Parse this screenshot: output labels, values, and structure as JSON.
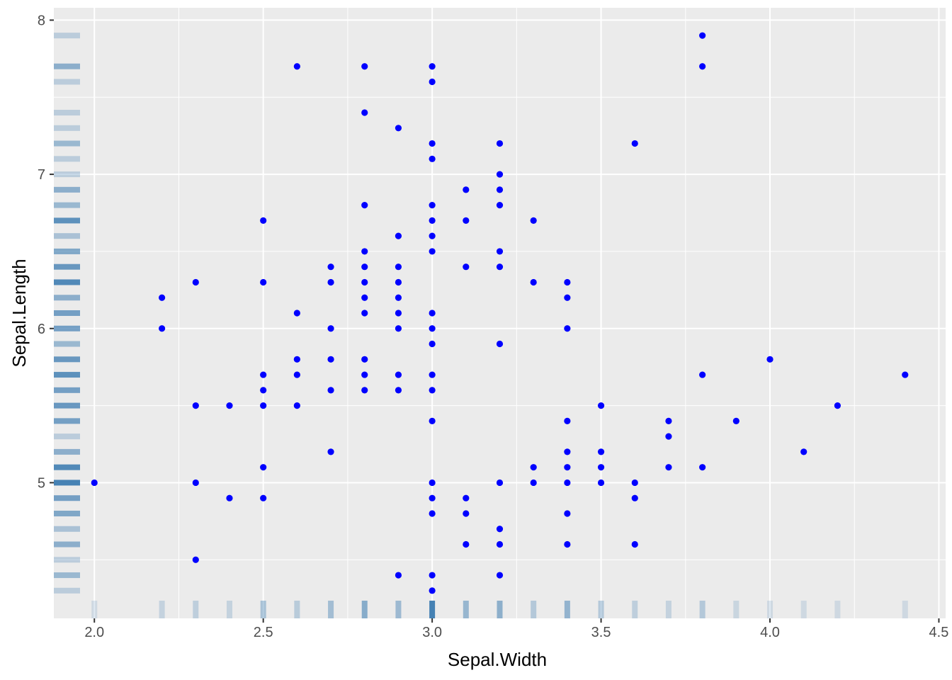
{
  "chart_data": {
    "type": "scatter",
    "title": "",
    "xlabel": "Sepal.Width",
    "ylabel": "Sepal.Length",
    "xlim": [
      1.88,
      4.52
    ],
    "ylim": [
      4.12,
      8.08
    ],
    "x_ticks": [
      2.0,
      2.5,
      3.0,
      3.5,
      4.0,
      4.5
    ],
    "x_tick_labels": [
      "2.0",
      "2.5",
      "3.0",
      "3.5",
      "4.0",
      "4.5"
    ],
    "y_ticks": [
      5,
      6,
      7,
      8
    ],
    "y_tick_labels": [
      "5",
      "6",
      "7",
      "8"
    ],
    "grid": true,
    "panel_background": "#ebebeb",
    "grid_color": "#ffffff",
    "point_color": "#0000ff",
    "rug_color": "#4682b4",
    "rug": {
      "x_marginal": "bottom",
      "y_marginal": "left",
      "x_counts": [
        {
          "value": 2.0,
          "count": 1
        },
        {
          "value": 2.2,
          "count": 3
        },
        {
          "value": 2.3,
          "count": 4
        },
        {
          "value": 2.4,
          "count": 3
        },
        {
          "value": 2.5,
          "count": 8
        },
        {
          "value": 2.6,
          "count": 5
        },
        {
          "value": 2.7,
          "count": 9
        },
        {
          "value": 2.8,
          "count": 14
        },
        {
          "value": 2.9,
          "count": 10
        },
        {
          "value": 3.0,
          "count": 26
        },
        {
          "value": 3.1,
          "count": 11
        },
        {
          "value": 3.2,
          "count": 13
        },
        {
          "value": 3.3,
          "count": 6
        },
        {
          "value": 3.4,
          "count": 12
        },
        {
          "value": 3.5,
          "count": 6
        },
        {
          "value": 3.6,
          "count": 4
        },
        {
          "value": 3.7,
          "count": 3
        },
        {
          "value": 3.8,
          "count": 6
        },
        {
          "value": 3.9,
          "count": 2
        },
        {
          "value": 4.0,
          "count": 1
        },
        {
          "value": 4.1,
          "count": 1
        },
        {
          "value": 4.2,
          "count": 1
        },
        {
          "value": 4.4,
          "count": 1
        }
      ],
      "y_counts": [
        {
          "value": 4.3,
          "count": 1
        },
        {
          "value": 4.4,
          "count": 3
        },
        {
          "value": 4.5,
          "count": 1
        },
        {
          "value": 4.6,
          "count": 4
        },
        {
          "value": 4.7,
          "count": 2
        },
        {
          "value": 4.8,
          "count": 5
        },
        {
          "value": 4.9,
          "count": 6
        },
        {
          "value": 5.0,
          "count": 10
        },
        {
          "value": 5.1,
          "count": 9
        },
        {
          "value": 5.2,
          "count": 4
        },
        {
          "value": 5.3,
          "count": 1
        },
        {
          "value": 5.4,
          "count": 6
        },
        {
          "value": 5.5,
          "count": 7
        },
        {
          "value": 5.6,
          "count": 6
        },
        {
          "value": 5.7,
          "count": 8
        },
        {
          "value": 5.8,
          "count": 7
        },
        {
          "value": 5.9,
          "count": 3
        },
        {
          "value": 6.0,
          "count": 6
        },
        {
          "value": 6.1,
          "count": 6
        },
        {
          "value": 6.2,
          "count": 4
        },
        {
          "value": 6.3,
          "count": 9
        },
        {
          "value": 6.4,
          "count": 7
        },
        {
          "value": 6.5,
          "count": 5
        },
        {
          "value": 6.6,
          "count": 2
        },
        {
          "value": 6.7,
          "count": 8
        },
        {
          "value": 6.8,
          "count": 3
        },
        {
          "value": 6.9,
          "count": 4
        },
        {
          "value": 7.0,
          "count": 1
        },
        {
          "value": 7.1,
          "count": 1
        },
        {
          "value": 7.2,
          "count": 3
        },
        {
          "value": 7.3,
          "count": 1
        },
        {
          "value": 7.4,
          "count": 1
        },
        {
          "value": 7.6,
          "count": 1
        },
        {
          "value": 7.7,
          "count": 4
        },
        {
          "value": 7.9,
          "count": 1
        }
      ]
    },
    "points": [
      {
        "x": 2.0,
        "y": 5.0
      },
      {
        "x": 2.2,
        "y": 6.0
      },
      {
        "x": 2.2,
        "y": 6.2
      },
      {
        "x": 2.3,
        "y": 4.5
      },
      {
        "x": 2.3,
        "y": 5.0
      },
      {
        "x": 2.3,
        "y": 5.5
      },
      {
        "x": 2.3,
        "y": 6.3
      },
      {
        "x": 2.4,
        "y": 4.9
      },
      {
        "x": 2.4,
        "y": 5.5
      },
      {
        "x": 2.5,
        "y": 4.9
      },
      {
        "x": 2.5,
        "y": 5.1
      },
      {
        "x": 2.5,
        "y": 5.5
      },
      {
        "x": 2.5,
        "y": 5.6
      },
      {
        "x": 2.5,
        "y": 5.7
      },
      {
        "x": 2.5,
        "y": 6.3
      },
      {
        "x": 2.5,
        "y": 6.7
      },
      {
        "x": 2.6,
        "y": 5.5
      },
      {
        "x": 2.6,
        "y": 5.7
      },
      {
        "x": 2.6,
        "y": 5.8
      },
      {
        "x": 2.6,
        "y": 6.1
      },
      {
        "x": 2.6,
        "y": 7.7
      },
      {
        "x": 2.7,
        "y": 5.2
      },
      {
        "x": 2.7,
        "y": 5.6
      },
      {
        "x": 2.7,
        "y": 5.8
      },
      {
        "x": 2.7,
        "y": 6.0
      },
      {
        "x": 2.7,
        "y": 6.3
      },
      {
        "x": 2.7,
        "y": 6.4
      },
      {
        "x": 2.8,
        "y": 5.6
      },
      {
        "x": 2.8,
        "y": 5.7
      },
      {
        "x": 2.8,
        "y": 5.8
      },
      {
        "x": 2.8,
        "y": 6.1
      },
      {
        "x": 2.8,
        "y": 6.2
      },
      {
        "x": 2.8,
        "y": 6.3
      },
      {
        "x": 2.8,
        "y": 6.4
      },
      {
        "x": 2.8,
        "y": 6.5
      },
      {
        "x": 2.8,
        "y": 6.8
      },
      {
        "x": 2.8,
        "y": 7.4
      },
      {
        "x": 2.8,
        "y": 7.7
      },
      {
        "x": 2.9,
        "y": 4.4
      },
      {
        "x": 2.9,
        "y": 5.6
      },
      {
        "x": 2.9,
        "y": 5.7
      },
      {
        "x": 2.9,
        "y": 6.0
      },
      {
        "x": 2.9,
        "y": 6.1
      },
      {
        "x": 2.9,
        "y": 6.2
      },
      {
        "x": 2.9,
        "y": 6.3
      },
      {
        "x": 2.9,
        "y": 6.4
      },
      {
        "x": 2.9,
        "y": 6.6
      },
      {
        "x": 2.9,
        "y": 7.3
      },
      {
        "x": 3.0,
        "y": 4.3
      },
      {
        "x": 3.0,
        "y": 4.4
      },
      {
        "x": 3.0,
        "y": 4.8
      },
      {
        "x": 3.0,
        "y": 4.9
      },
      {
        "x": 3.0,
        "y": 5.0
      },
      {
        "x": 3.0,
        "y": 5.4
      },
      {
        "x": 3.0,
        "y": 5.6
      },
      {
        "x": 3.0,
        "y": 5.7
      },
      {
        "x": 3.0,
        "y": 5.9
      },
      {
        "x": 3.0,
        "y": 6.0
      },
      {
        "x": 3.0,
        "y": 6.1
      },
      {
        "x": 3.0,
        "y": 6.5
      },
      {
        "x": 3.0,
        "y": 6.6
      },
      {
        "x": 3.0,
        "y": 6.7
      },
      {
        "x": 3.0,
        "y": 6.8
      },
      {
        "x": 3.0,
        "y": 7.1
      },
      {
        "x": 3.0,
        "y": 7.2
      },
      {
        "x": 3.0,
        "y": 7.6
      },
      {
        "x": 3.0,
        "y": 7.7
      },
      {
        "x": 3.1,
        "y": 4.6
      },
      {
        "x": 3.1,
        "y": 4.8
      },
      {
        "x": 3.1,
        "y": 4.9
      },
      {
        "x": 3.1,
        "y": 6.4
      },
      {
        "x": 3.1,
        "y": 6.7
      },
      {
        "x": 3.1,
        "y": 6.9
      },
      {
        "x": 3.2,
        "y": 4.4
      },
      {
        "x": 3.2,
        "y": 4.6
      },
      {
        "x": 3.2,
        "y": 4.7
      },
      {
        "x": 3.2,
        "y": 5.0
      },
      {
        "x": 3.2,
        "y": 5.9
      },
      {
        "x": 3.2,
        "y": 6.4
      },
      {
        "x": 3.2,
        "y": 6.5
      },
      {
        "x": 3.2,
        "y": 6.8
      },
      {
        "x": 3.2,
        "y": 6.9
      },
      {
        "x": 3.2,
        "y": 7.0
      },
      {
        "x": 3.2,
        "y": 7.2
      },
      {
        "x": 3.3,
        "y": 5.0
      },
      {
        "x": 3.3,
        "y": 5.1
      },
      {
        "x": 3.3,
        "y": 6.3
      },
      {
        "x": 3.3,
        "y": 6.7
      },
      {
        "x": 3.4,
        "y": 4.6
      },
      {
        "x": 3.4,
        "y": 4.8
      },
      {
        "x": 3.4,
        "y": 5.0
      },
      {
        "x": 3.4,
        "y": 5.1
      },
      {
        "x": 3.4,
        "y": 5.2
      },
      {
        "x": 3.4,
        "y": 5.4
      },
      {
        "x": 3.4,
        "y": 6.0
      },
      {
        "x": 3.4,
        "y": 6.2
      },
      {
        "x": 3.4,
        "y": 6.3
      },
      {
        "x": 3.5,
        "y": 5.0
      },
      {
        "x": 3.5,
        "y": 5.1
      },
      {
        "x": 3.5,
        "y": 5.2
      },
      {
        "x": 3.5,
        "y": 5.5
      },
      {
        "x": 3.6,
        "y": 4.6
      },
      {
        "x": 3.6,
        "y": 4.9
      },
      {
        "x": 3.6,
        "y": 5.0
      },
      {
        "x": 3.6,
        "y": 7.2
      },
      {
        "x": 3.7,
        "y": 5.1
      },
      {
        "x": 3.7,
        "y": 5.3
      },
      {
        "x": 3.7,
        "y": 5.4
      },
      {
        "x": 3.8,
        "y": 5.1
      },
      {
        "x": 3.8,
        "y": 5.7
      },
      {
        "x": 3.8,
        "y": 7.7
      },
      {
        "x": 3.8,
        "y": 7.9
      },
      {
        "x": 3.9,
        "y": 5.4
      },
      {
        "x": 4.0,
        "y": 5.8
      },
      {
        "x": 4.1,
        "y": 5.2
      },
      {
        "x": 4.2,
        "y": 5.5
      },
      {
        "x": 4.4,
        "y": 5.7
      }
    ]
  }
}
